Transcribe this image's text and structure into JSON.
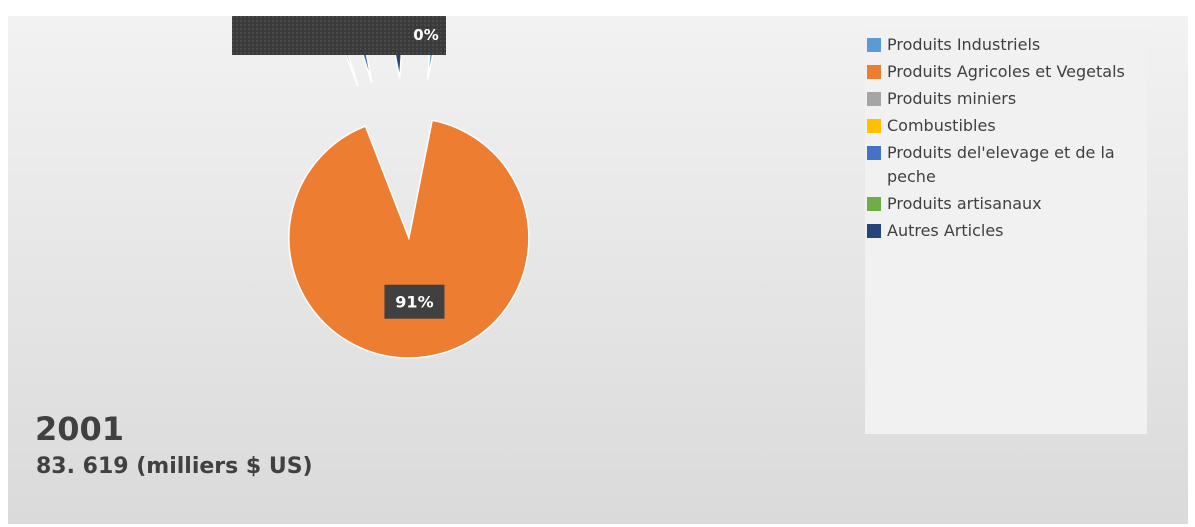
{
  "chart_data": {
    "type": "pie",
    "title": "2001",
    "subtitle": "83. 619 (milliers $ US)",
    "legend_position": "right",
    "slices": [
      {
        "name": "Produits Industriels",
        "value": 2,
        "color": "#5b9bd5",
        "label": ""
      },
      {
        "name": "Produits Agricoles et Vegetals",
        "value": 91,
        "color": "#ed7d31",
        "label": "91%"
      },
      {
        "name": "Produits miniers",
        "value": 1,
        "color": "#a5a5a5",
        "label": ""
      },
      {
        "name": "Combustibles",
        "value": 0,
        "color": "#ffc000",
        "label": ""
      },
      {
        "name": "Produits del'elevage et de la peche",
        "value": 2,
        "color": "#4472c4",
        "label": ""
      },
      {
        "name": "Produits artisanaux",
        "value": 0,
        "color": "#70ad47",
        "label": ""
      },
      {
        "name": "Autres Articles",
        "value": 4,
        "color": "#264478",
        "label": ""
      }
    ],
    "partial_label": "0%"
  },
  "legend": {
    "items": [
      {
        "label": "Produits Industriels",
        "color": "#5b9bd5"
      },
      {
        "label": "Produits Agricoles et Vegetals",
        "color": "#ed7d31"
      },
      {
        "label": "Produits miniers",
        "color": "#a5a5a5"
      },
      {
        "label": "Combustibles",
        "color": "#ffc000"
      },
      {
        "label": "Produits del'elevage et de la peche",
        "color": "#4472c4"
      },
      {
        "label": "Produits artisanaux",
        "color": "#70ad47"
      },
      {
        "label": "Autres Articles",
        "color": "#264478"
      }
    ]
  }
}
